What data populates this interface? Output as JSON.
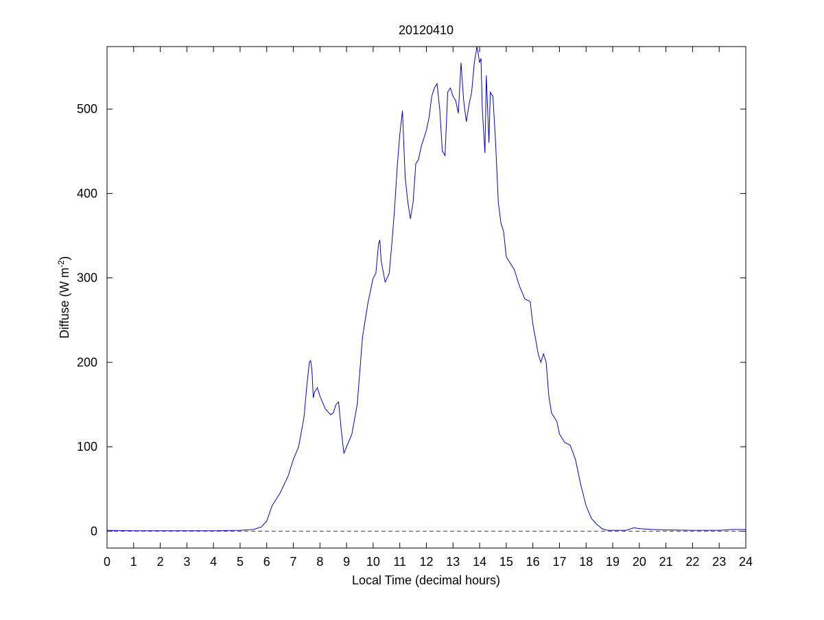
{
  "chart_data": {
    "type": "line",
    "title": "20120410",
    "xlabel": "Local Time (decimal hours)",
    "ylabel": [
      "Diffuse (W m",
      "-2",
      ")"
    ],
    "xlim": [
      0,
      24
    ],
    "xticks": [
      0,
      1,
      2,
      3,
      4,
      5,
      6,
      7,
      8,
      9,
      10,
      11,
      12,
      13,
      14,
      15,
      16,
      17,
      18,
      19,
      20,
      21,
      22,
      23,
      24
    ],
    "ylim": [
      -20,
      574
    ],
    "yticks": [
      0,
      100,
      200,
      300,
      400,
      500
    ],
    "hlines": [
      {
        "value": 0,
        "color": "#cc0000",
        "dashed": true
      }
    ],
    "series": [
      {
        "color": "#0000cc",
        "x": [
          0,
          1,
          2,
          3,
          4,
          5,
          5.5,
          5.8,
          6.0,
          6.2,
          6.5,
          6.8,
          7.0,
          7.2,
          7.4,
          7.5,
          7.6,
          7.65,
          7.7,
          7.75,
          7.8,
          7.9,
          8.0,
          8.2,
          8.4,
          8.5,
          8.6,
          8.7,
          8.8,
          8.9,
          9.0,
          9.2,
          9.4,
          9.6,
          9.8,
          10.0,
          10.1,
          10.2,
          10.25,
          10.3,
          10.45,
          10.6,
          10.7,
          10.8,
          10.9,
          11.0,
          11.1,
          11.2,
          11.3,
          11.4,
          11.5,
          11.6,
          11.7,
          11.8,
          11.9,
          12.0,
          12.1,
          12.2,
          12.3,
          12.4,
          12.5,
          12.6,
          12.7,
          12.8,
          12.9,
          13.0,
          13.1,
          13.2,
          13.3,
          13.4,
          13.5,
          13.6,
          13.7,
          13.8,
          13.9,
          14.0,
          14.05,
          14.1,
          14.2,
          14.25,
          14.3,
          14.35,
          14.4,
          14.5,
          14.6,
          14.7,
          14.8,
          14.9,
          15.0,
          15.1,
          15.3,
          15.5,
          15.7,
          15.9,
          16.0,
          16.1,
          16.2,
          16.3,
          16.4,
          16.5,
          16.6,
          16.7,
          16.9,
          17.0,
          17.2,
          17.4,
          17.6,
          17.8,
          18.0,
          18.2,
          18.4,
          18.6,
          18.8,
          19.0,
          19.5,
          19.8,
          20.0,
          20.5,
          21,
          22,
          23,
          23.5,
          24
        ],
        "values": [
          1,
          0.5,
          0.5,
          0.5,
          0.5,
          1,
          2,
          5,
          12,
          30,
          45,
          65,
          85,
          100,
          135,
          170,
          200,
          202,
          190,
          158,
          165,
          170,
          160,
          145,
          138,
          140,
          150,
          153,
          120,
          92,
          100,
          115,
          150,
          230,
          270,
          300,
          305,
          340,
          345,
          320,
          295,
          305,
          340,
          380,
          430,
          470,
          498,
          420,
          390,
          370,
          390,
          435,
          440,
          455,
          465,
          475,
          490,
          515,
          525,
          530,
          500,
          450,
          445,
          520,
          525,
          515,
          510,
          495,
          555,
          510,
          485,
          505,
          520,
          555,
          574,
          555,
          560,
          500,
          448,
          540,
          500,
          460,
          520,
          515,
          460,
          390,
          365,
          355,
          325,
          320,
          310,
          290,
          275,
          272,
          245,
          228,
          210,
          200,
          210,
          200,
          160,
          140,
          130,
          115,
          105,
          102,
          85,
          55,
          30,
          15,
          8,
          3,
          1,
          1,
          1,
          4,
          3,
          2,
          1.5,
          1,
          1,
          2,
          2
        ]
      }
    ]
  }
}
